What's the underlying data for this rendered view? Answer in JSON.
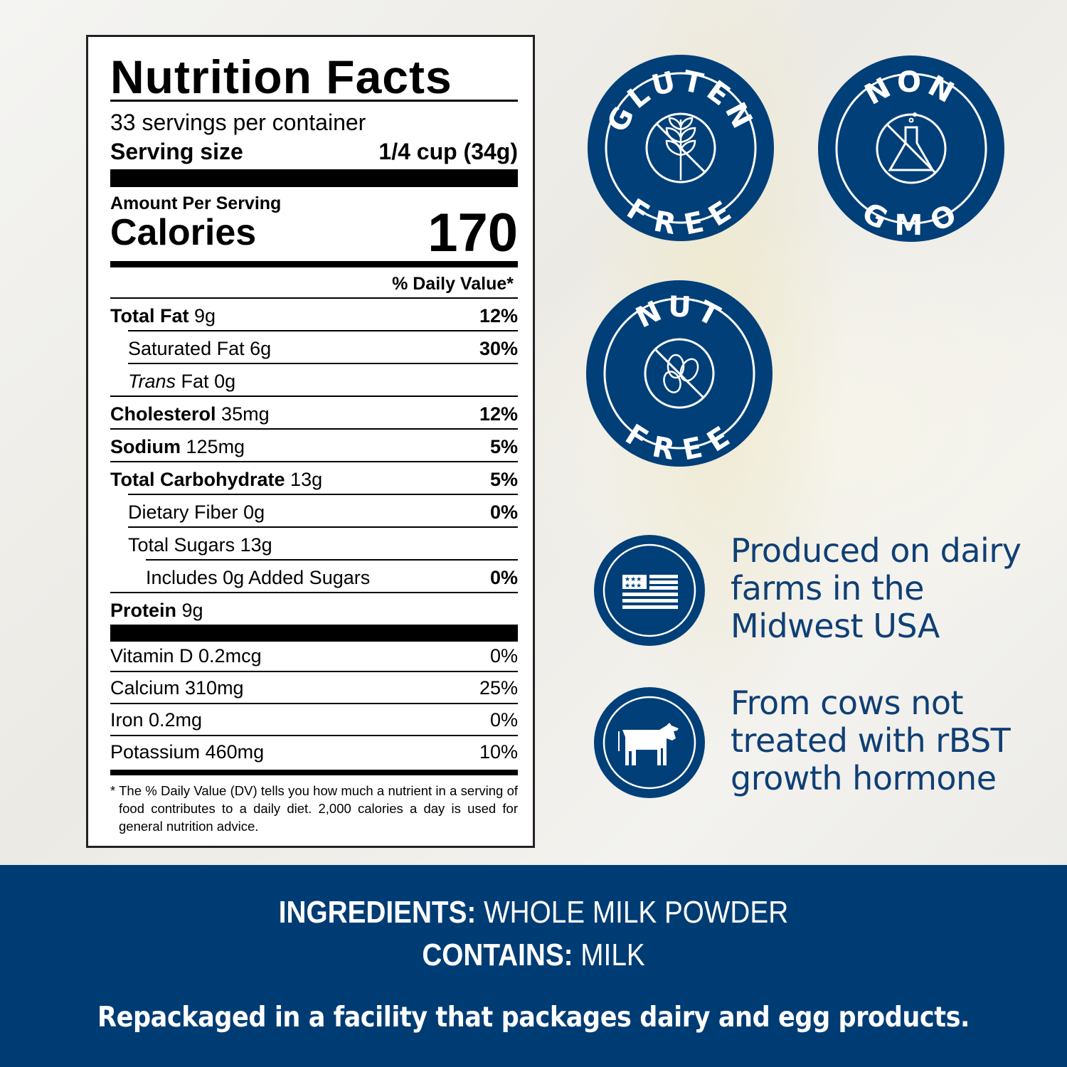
{
  "nutrition": {
    "title": "Nutrition Facts",
    "servings": "33 servings per container",
    "serving_size_label": "Serving size",
    "serving_size_value": "1/4 cup (34g)",
    "amount_per_serving": "Amount Per Serving",
    "calories_label": "Calories",
    "calories_value": "170",
    "dv_header": "% Daily Value*",
    "rows": [
      {
        "name": "Total Fat",
        "amount": "9g",
        "dv": "12%"
      },
      {
        "name": "Saturated Fat",
        "amount": "6g",
        "dv": "30%"
      },
      {
        "name": "Trans",
        "name2": "Fat",
        "amount": "0g",
        "dv": ""
      },
      {
        "name": "Cholesterol",
        "amount": "35mg",
        "dv": "12%"
      },
      {
        "name": "Sodium",
        "amount": "125mg",
        "dv": "5%"
      },
      {
        "name": "Total Carbohydrate",
        "amount": "13g",
        "dv": "5%"
      },
      {
        "name": "Dietary Fiber",
        "amount": "0g",
        "dv": "0%"
      },
      {
        "name": "Total Sugars",
        "amount": "13g",
        "dv": ""
      },
      {
        "name": "Includes 0g Added Sugars",
        "amount": "",
        "dv": "0%"
      },
      {
        "name": "Protein",
        "amount": "9g",
        "dv": ""
      }
    ],
    "vitamins": [
      {
        "name": "Vitamin D 0.2mcg",
        "dv": "0%"
      },
      {
        "name": "Calcium 310mg",
        "dv": "25%"
      },
      {
        "name": "Iron 0.2mg",
        "dv": "0%"
      },
      {
        "name": "Potassium 460mg",
        "dv": "10%"
      }
    ],
    "footnote": "* The % Daily Value (DV) tells you how much a nutrient in a serving of food contributes to a daily diet. 2,000 calories a day is used for general nutrition advice."
  },
  "badges": [
    {
      "top": "GLUTEN",
      "bottom": "FREE",
      "icon": "wheat-crossed-icon"
    },
    {
      "top": "NON",
      "bottom": "GMO",
      "icon": "flask-crossed-icon"
    },
    {
      "top": "NUT",
      "bottom": "FREE",
      "icon": "peanut-crossed-icon"
    }
  ],
  "claims": [
    {
      "icon": "usa-flag-icon",
      "lines": [
        "Produced on dairy",
        "farms in the",
        "Midwest USA"
      ]
    },
    {
      "icon": "cow-icon",
      "lines": [
        "From cows not",
        "treated with rBST",
        "growth hormone"
      ]
    }
  ],
  "footer": {
    "ingredients_label": "INGREDIENTS:",
    "ingredients_value": " WHOLE MILK POWDER",
    "contains_label": "CONTAINS:",
    "contains_value": " MILK",
    "facility": "Repackaged in a facility that packages dairy and egg products."
  },
  "colors": {
    "brand_blue": "#003f78"
  }
}
